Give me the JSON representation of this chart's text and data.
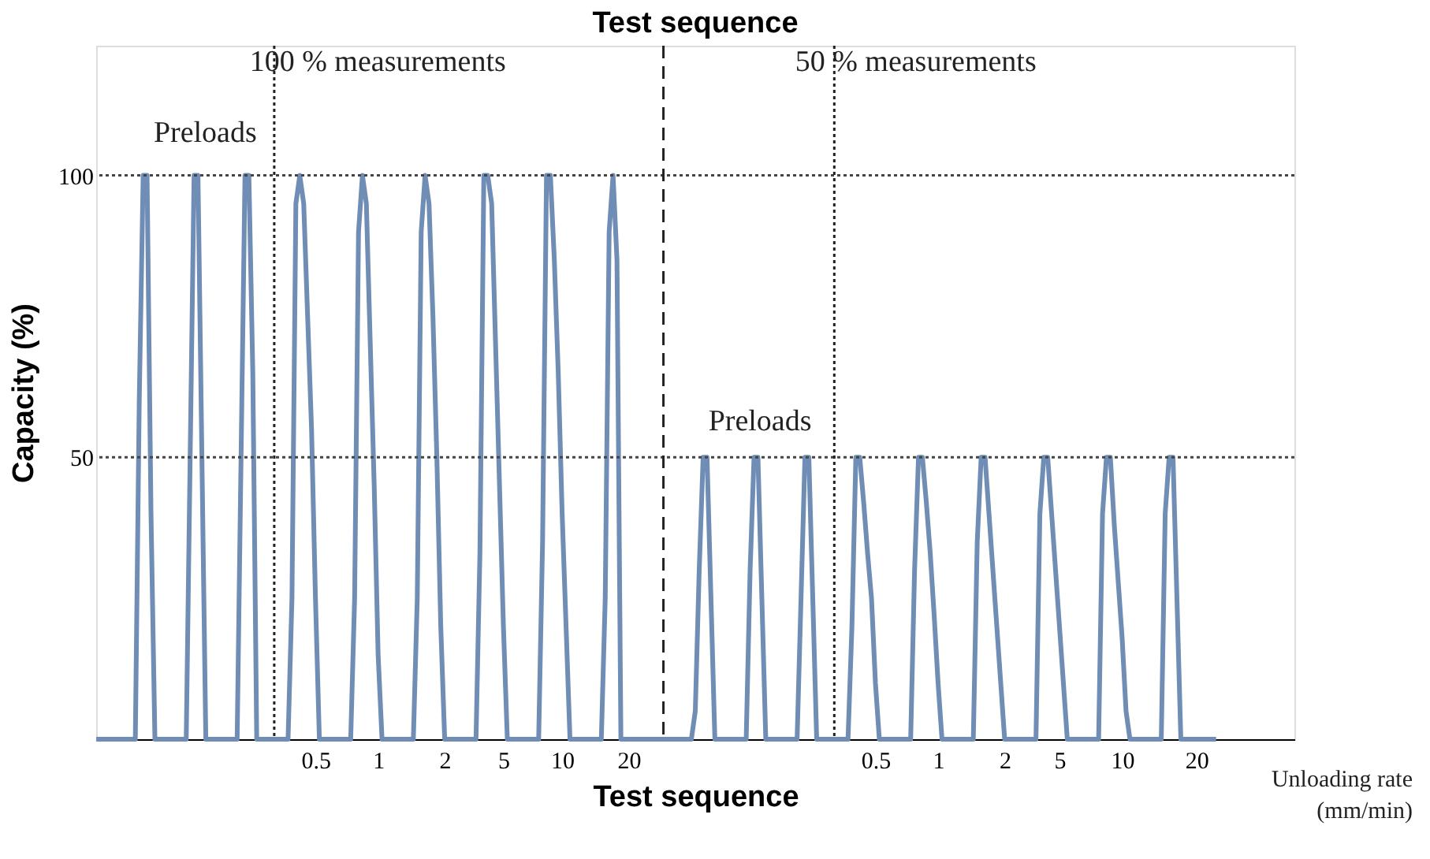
{
  "chart_data": {
    "type": "line",
    "title": "Test sequence",
    "xlabel": "Test sequence",
    "ylabel": "Capacity (%)",
    "categories": [
      null,
      null,
      null,
      null,
      null,
      null,
      null,
      null,
      null,
      null,
      null,
      null,
      null,
      null,
      null,
      null,
      null,
      null,
      null,
      null,
      null,
      null,
      null,
      null,
      null,
      null,
      null,
      null,
      null,
      null,
      null,
      null,
      null,
      null,
      null,
      null,
      null,
      null,
      null,
      null,
      null,
      null,
      null,
      null,
      null,
      null,
      null,
      null,
      null,
      null,
      null,
      null,
      null,
      null,
      null,
      null,
      "0.5",
      null,
      null,
      null,
      null,
      null,
      null,
      null,
      null,
      null,
      null,
      null,
      null,
      null,
      null,
      null,
      "1",
      null,
      null,
      null,
      null,
      null,
      null,
      null,
      null,
      null,
      null,
      null,
      null,
      null,
      null,
      null,
      null,
      "2",
      null,
      null,
      null,
      null,
      null,
      null,
      null,
      null,
      null,
      null,
      null,
      null,
      null,
      null,
      "5",
      null,
      null,
      null,
      null,
      null,
      null,
      null,
      null,
      null,
      null,
      null,
      null,
      null,
      null,
      "10",
      null,
      null,
      null,
      null,
      null,
      null,
      null,
      null,
      null,
      null,
      null,
      null,
      null,
      null,
      null,
      null,
      "20",
      null,
      null,
      null,
      null,
      null,
      null,
      null,
      null,
      null,
      null,
      null,
      null,
      null,
      null,
      null,
      null,
      null,
      null,
      null,
      null,
      null,
      null,
      null,
      null,
      null,
      null,
      null,
      null,
      null,
      null,
      null,
      null,
      null,
      null,
      null,
      null,
      null,
      null,
      null,
      null,
      null,
      null,
      null,
      null,
      null,
      null,
      null,
      null,
      null,
      null,
      null,
      null,
      null,
      null,
      null,
      null,
      null,
      null,
      null,
      null,
      null,
      null,
      "0.5",
      null,
      null,
      null,
      null,
      null,
      null,
      null,
      null,
      null,
      null,
      null,
      null,
      null,
      null,
      null,
      "1",
      null,
      null,
      null,
      null,
      null,
      null,
      null,
      null,
      null,
      null,
      null,
      null,
      null,
      null,
      null,
      null,
      "2",
      null,
      null,
      null,
      null,
      null,
      null,
      null,
      null,
      null,
      null,
      null,
      null,
      null,
      "5",
      null,
      null,
      null,
      null,
      null,
      null,
      null,
      null,
      null,
      null,
      null,
      null,
      null,
      null,
      null,
      "10",
      null,
      null,
      null,
      null,
      null,
      null,
      null,
      null,
      null,
      null,
      null,
      null,
      null,
      null,
      null,
      null,
      null,
      null,
      "20",
      null,
      null,
      null,
      null,
      null,
      null,
      null,
      null,
      null,
      null,
      null,
      null,
      null,
      null,
      null,
      null,
      null,
      null,
      null,
      null,
      null,
      null,
      null,
      null,
      null
    ],
    "series": [
      {
        "color": "#6f8db5",
        "values": [
          0,
          0,
          0,
          0,
          0,
          0,
          0,
          0,
          0,
          0,
          0,
          60,
          100,
          100,
          40,
          0,
          0,
          0,
          0,
          0,
          0,
          0,
          0,
          0,
          50,
          100,
          100,
          50,
          0,
          0,
          0,
          0,
          0,
          0,
          0,
          0,
          0,
          50,
          100,
          100,
          65,
          0,
          0,
          0,
          0,
          0,
          0,
          0,
          0,
          0,
          25,
          95,
          100,
          95,
          75,
          55,
          25,
          0,
          0,
          0,
          0,
          0,
          0,
          0,
          0,
          0,
          25,
          90,
          100,
          95,
          70,
          45,
          15,
          0,
          0,
          0,
          0,
          0,
          0,
          0,
          0,
          0,
          25,
          90,
          100,
          95,
          75,
          50,
          20,
          0,
          0,
          0,
          0,
          0,
          0,
          0,
          0,
          0,
          33,
          100,
          100,
          95,
          70,
          45,
          20,
          0,
          0,
          0,
          0,
          0,
          0,
          0,
          0,
          0,
          35,
          100,
          100,
          85,
          65,
          40,
          20,
          0,
          0,
          0,
          0,
          0,
          0,
          0,
          0,
          0,
          25,
          90,
          100,
          85,
          0,
          0,
          0,
          0,
          0,
          0,
          0,
          0,
          0,
          0,
          0,
          0,
          0,
          0,
          0,
          0,
          0,
          0,
          0,
          5,
          30,
          50,
          50,
          25,
          0,
          0,
          0,
          0,
          0,
          0,
          0,
          0,
          0,
          30,
          50,
          50,
          25,
          0,
          0,
          0,
          0,
          0,
          0,
          0,
          0,
          0,
          25,
          50,
          50,
          25,
          0,
          0,
          0,
          0,
          0,
          0,
          0,
          0,
          0,
          20,
          50,
          50,
          42,
          33,
          25,
          10,
          0,
          0,
          0,
          0,
          0,
          0,
          0,
          0,
          0,
          30,
          50,
          50,
          42,
          33,
          22,
          10,
          0,
          0,
          0,
          0,
          0,
          0,
          0,
          0,
          0,
          35,
          50,
          50,
          40,
          30,
          20,
          10,
          0,
          0,
          0,
          0,
          0,
          0,
          0,
          0,
          0,
          40,
          50,
          50,
          40,
          30,
          20,
          10,
          0,
          0,
          0,
          0,
          0,
          0,
          0,
          0,
          0,
          40,
          50,
          50,
          38,
          28,
          18,
          5,
          0,
          0,
          0,
          0,
          0,
          0,
          0,
          0,
          0,
          40,
          50,
          50,
          25,
          0,
          0,
          0,
          0,
          0,
          0,
          0,
          0,
          0,
          0,
          null,
          null,
          null,
          null,
          null,
          null,
          null,
          null,
          null,
          null,
          null,
          null,
          null,
          null,
          null,
          null,
          null,
          null,
          null,
          null
        ]
      }
    ],
    "ylim": [
      0,
      123
    ],
    "yticks": [
      50,
      100
    ],
    "ref_lines": [
      {
        "axis": "y",
        "value": 100,
        "line_style": "dotted",
        "color": "#444444"
      },
      {
        "axis": "y",
        "value": 50,
        "line_style": "dotted",
        "color": "#444444"
      }
    ],
    "annotations": [
      "100 % measurements",
      "50 % measurements",
      "Preloads",
      "Preloads",
      "Unloading rate (mm/min)"
    ],
    "grid": false,
    "legend": false,
    "marker": "none",
    "line_style": "solid"
  }
}
